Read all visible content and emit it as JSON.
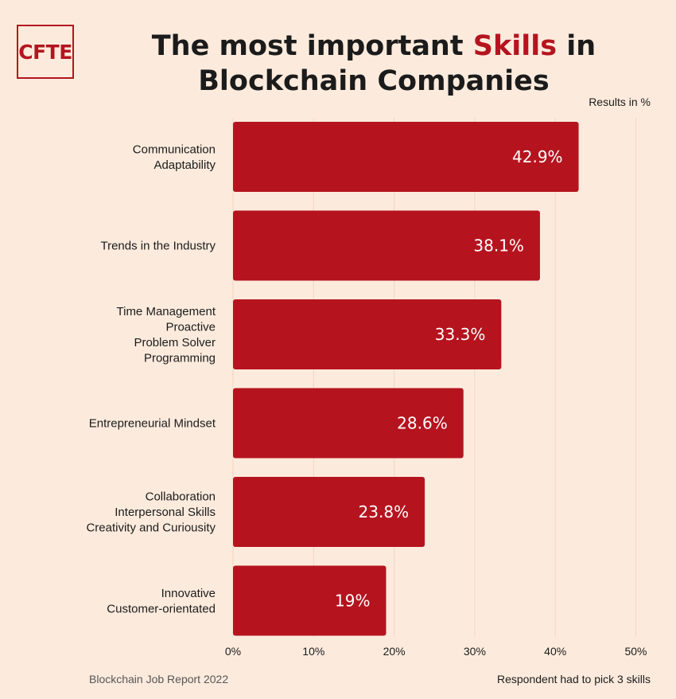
{
  "logo": {
    "text": "CFTE"
  },
  "title": {
    "before": "The most  important ",
    "highlight": "Skills",
    "after": " in Blockchain Companies"
  },
  "results_note": "Results in %",
  "footer": {
    "source": "Blockchain Job Report 2022",
    "note": "Respondent had to pick 3 skills"
  },
  "colors": {
    "bar": "#b5141f",
    "background": "#fcebdd",
    "accent": "#b5141f"
  },
  "chart_data": {
    "type": "bar",
    "orientation": "horizontal",
    "categories": [
      [
        "Communication",
        "Adaptability"
      ],
      [
        "Trends in the Industry"
      ],
      [
        "Time Management",
        "Proactive",
        "Problem Solver",
        "Programming"
      ],
      [
        "Entrepreneurial Mindset"
      ],
      [
        "Collaboration",
        "Interpersonal Skills",
        "Creativity and Curiousity"
      ],
      [
        "Innovative",
        "Customer-orientated"
      ]
    ],
    "values": [
      42.9,
      38.1,
      33.3,
      28.6,
      23.8,
      19
    ],
    "value_labels": [
      "42.9%",
      "38.1%",
      "33.3%",
      "28.6%",
      "23.8%",
      "19%"
    ],
    "xlim": [
      0,
      50
    ],
    "xticks": [
      "0%",
      "10%",
      "20%",
      "30%",
      "40%",
      "50%"
    ],
    "grid": "vertical"
  }
}
